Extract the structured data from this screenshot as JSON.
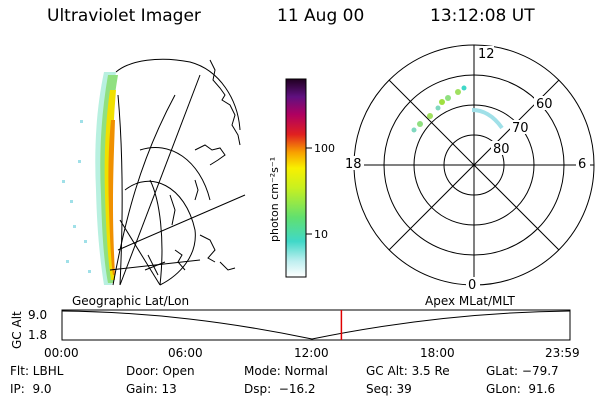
{
  "header": {
    "instrument": "Ultraviolet Imager",
    "date": "11 Aug 00",
    "time": "13:12:08 UT"
  },
  "colorbar": {
    "label": "photon cm⁻²s⁻¹",
    "ticks": [
      "100",
      "10"
    ]
  },
  "polar_plot": {
    "mlt_labels": [
      "12",
      "18",
      "6",
      "0"
    ],
    "lat_labels": [
      "60",
      "70",
      "80"
    ]
  },
  "timeline": {
    "left_title": "Geographic Lat/Lon",
    "right_title": "Apex MLat/MLT",
    "y_label": "GC Alt",
    "y_ticks": [
      "9.0",
      "1.8"
    ],
    "x_ticks": [
      "00:00",
      "06:00",
      "12:00",
      "18:00",
      "23:59"
    ],
    "current_time_fraction": 0.55
  },
  "info": {
    "flt": "Flt: LBHL",
    "ip": "IP:  9.0",
    "door": "Door: Open",
    "gain": "Gain: 13",
    "mode": "Mode: Normal",
    "dsp": "Dsp:  −16.2",
    "gcalt": "GC Alt: 3.5 Re",
    "seq": "Seq: 39",
    "glat": "GLat: −79.7",
    "glon": "GLon:  91.6"
  }
}
